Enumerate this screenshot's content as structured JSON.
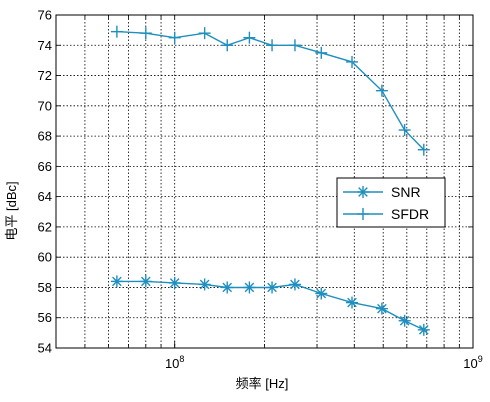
{
  "chart_data": {
    "type": "line",
    "xlabel": "频率 [Hz]",
    "ylabel": "电平 [dBc]",
    "x_scale": "log",
    "xlim": [
      40000000,
      1000000000
    ],
    "ylim": [
      54,
      76
    ],
    "x_ticks": [
      {
        "value": 100000000,
        "base": "10",
        "exp": "8"
      },
      {
        "value": 1000000000,
        "base": "10",
        "exp": "9"
      }
    ],
    "y_ticks": [
      54,
      56,
      58,
      60,
      62,
      64,
      66,
      68,
      70,
      72,
      74,
      76
    ],
    "grid": true,
    "legend_position": "right",
    "line_color": "#1f8fbf",
    "series": [
      {
        "name": "SNR",
        "marker": "star",
        "points": [
          [
            64000000,
            58.4
          ],
          [
            80000000,
            58.4
          ],
          [
            100000000,
            58.3
          ],
          [
            126000000,
            58.2
          ],
          [
            150000000,
            58.0
          ],
          [
            178000000,
            58.0
          ],
          [
            212000000,
            58.0
          ],
          [
            253000000,
            58.2
          ],
          [
            310000000,
            57.6
          ],
          [
            393000000,
            57.0
          ],
          [
            495000000,
            56.6
          ],
          [
            590000000,
            55.8
          ],
          [
            684000000,
            55.2
          ]
        ]
      },
      {
        "name": "SFDR",
        "marker": "plus",
        "points": [
          [
            64000000,
            74.9
          ],
          [
            80000000,
            74.8
          ],
          [
            100000000,
            74.5
          ],
          [
            126000000,
            74.8
          ],
          [
            150000000,
            74.0
          ],
          [
            178000000,
            74.5
          ],
          [
            212000000,
            74.0
          ],
          [
            253000000,
            74.0
          ],
          [
            310000000,
            73.5
          ],
          [
            393000000,
            72.9
          ],
          [
            495000000,
            71.0
          ],
          [
            590000000,
            68.4
          ],
          [
            684000000,
            67.1
          ]
        ]
      }
    ]
  }
}
